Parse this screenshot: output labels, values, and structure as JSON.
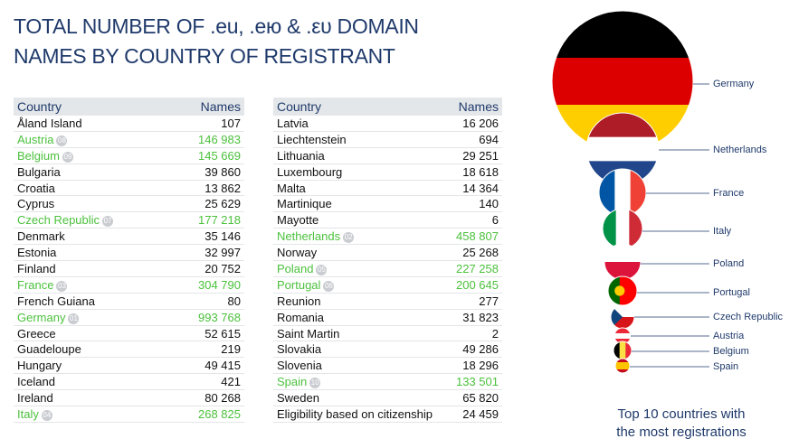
{
  "title": [
    "TOTAL NUMBER OF .eu, .ею & .ευ DOMAIN",
    "NAMES BY COUNTRY OF REGISTRANT"
  ],
  "tables": [
    {
      "header": [
        "Country",
        "Names"
      ],
      "rows": [
        {
          "country": "Åland Island",
          "names": "107"
        },
        {
          "country": "Austria",
          "rank": "08",
          "names": "146 983"
        },
        {
          "country": "Belgium",
          "rank": "09",
          "names": "145 669"
        },
        {
          "country": "Bulgaria",
          "names": "39 860"
        },
        {
          "country": "Croatia",
          "names": "13 862"
        },
        {
          "country": "Cyprus",
          "names": "25 629"
        },
        {
          "country": "Czech Republic",
          "rank": "07",
          "names": "177 218"
        },
        {
          "country": "Denmark",
          "names": "35 146"
        },
        {
          "country": "Estonia",
          "names": "32 997"
        },
        {
          "country": "Finland",
          "names": "20 752"
        },
        {
          "country": "France",
          "rank": "03",
          "names": "304 790"
        },
        {
          "country": "French Guiana",
          "names": "80"
        },
        {
          "country": "Germany",
          "rank": "01",
          "names": "993 768"
        },
        {
          "country": "Greece",
          "names": "52 615"
        },
        {
          "country": "Guadeloupe",
          "names": "219"
        },
        {
          "country": "Hungary",
          "names": "49 415"
        },
        {
          "country": "Iceland",
          "names": "421"
        },
        {
          "country": "Ireland",
          "names": "80 268"
        },
        {
          "country": "Italy",
          "rank": "04",
          "names": "268 825"
        }
      ]
    },
    {
      "header": [
        "Country",
        "Names"
      ],
      "rows": [
        {
          "country": "Latvia",
          "names": "16 206"
        },
        {
          "country": "Liechtenstein",
          "names": "694"
        },
        {
          "country": "Lithuania",
          "names": "29 251"
        },
        {
          "country": "Luxembourg",
          "names": "18 618"
        },
        {
          "country": "Malta",
          "names": "14 364"
        },
        {
          "country": "Martinique",
          "names": "140"
        },
        {
          "country": "Mayotte",
          "names": "6"
        },
        {
          "country": "Netherlands",
          "rank": "02",
          "names": "458 807"
        },
        {
          "country": "Norway",
          "names": "25 268"
        },
        {
          "country": "Poland",
          "rank": "05",
          "names": "227 258"
        },
        {
          "country": "Portugal",
          "rank": "06",
          "names": "200 645"
        },
        {
          "country": "Reunion",
          "names": "277"
        },
        {
          "country": "Romania",
          "names": "31 823"
        },
        {
          "country": "Saint Martin",
          "names": "2"
        },
        {
          "country": "Slovakia",
          "names": "49 286"
        },
        {
          "country": "Slovenia",
          "names": "18 296"
        },
        {
          "country": "Spain",
          "rank": "10",
          "names": "133 501"
        },
        {
          "country": "Sweden",
          "names": "65 820"
        },
        {
          "country": "Eligibility based on citizenship",
          "names": "24 459"
        }
      ]
    }
  ],
  "top10": {
    "labels": [
      "Germany",
      "Netherlands",
      "France",
      "Italy",
      "Poland",
      "Portugal",
      "Czech Republic",
      "Austria",
      "Belgium",
      "Spain"
    ],
    "caption": [
      "Top 10 countries with",
      "the most registrations"
    ]
  }
}
